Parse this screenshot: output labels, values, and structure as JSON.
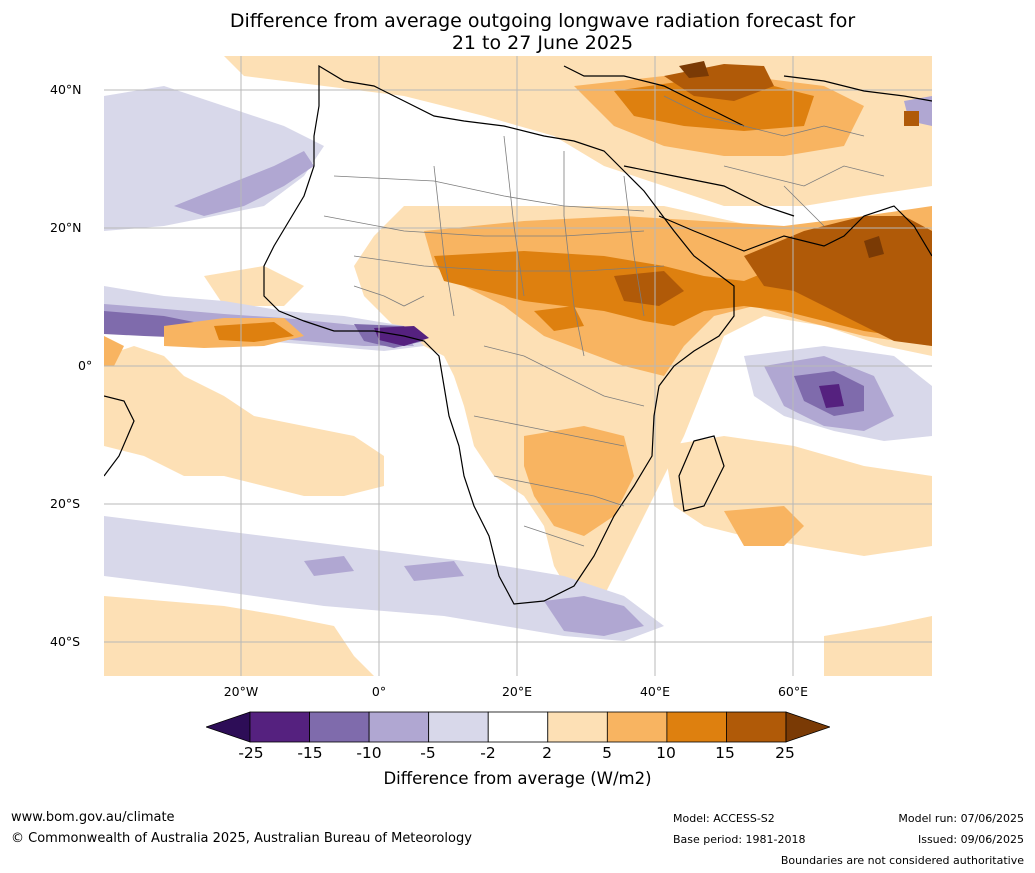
{
  "title_line1": "Difference from average outgoing longwave radiation forecast for",
  "title_line2": "21 to 27 June 2025",
  "lat_labels": [
    "40°N",
    "20°N",
    "0°",
    "20°S",
    "40°S"
  ],
  "lon_labels": [
    "20°W",
    "0°",
    "20°E",
    "40°E",
    "60°E"
  ],
  "colorbar": {
    "ticks": [
      "-25",
      "-15",
      "-10",
      "-5",
      "-2",
      "2",
      "5",
      "10",
      "15",
      "25"
    ],
    "colors": [
      "#2d0d57",
      "#55217f",
      "#7f6bac",
      "#b0a7d2",
      "#d8d8ea",
      "#ffffff",
      "#fde0b5",
      "#f8b461",
      "#de800f",
      "#b05a08",
      "#7a3a05"
    ],
    "title": "Difference from average (W/m2)"
  },
  "footer": {
    "website": "www.bom.gov.au/climate",
    "copyright": "© Commonwealth of Australia 2025, Australian Bureau of Meteorology",
    "model": "Model: ACCESS-S2",
    "base_period": "Base period: 1981-2018",
    "model_run": "Model run: 07/06/2025",
    "issued": "Issued: 09/06/2025",
    "disclaimer": "Boundaries are not considered authoritative"
  }
}
